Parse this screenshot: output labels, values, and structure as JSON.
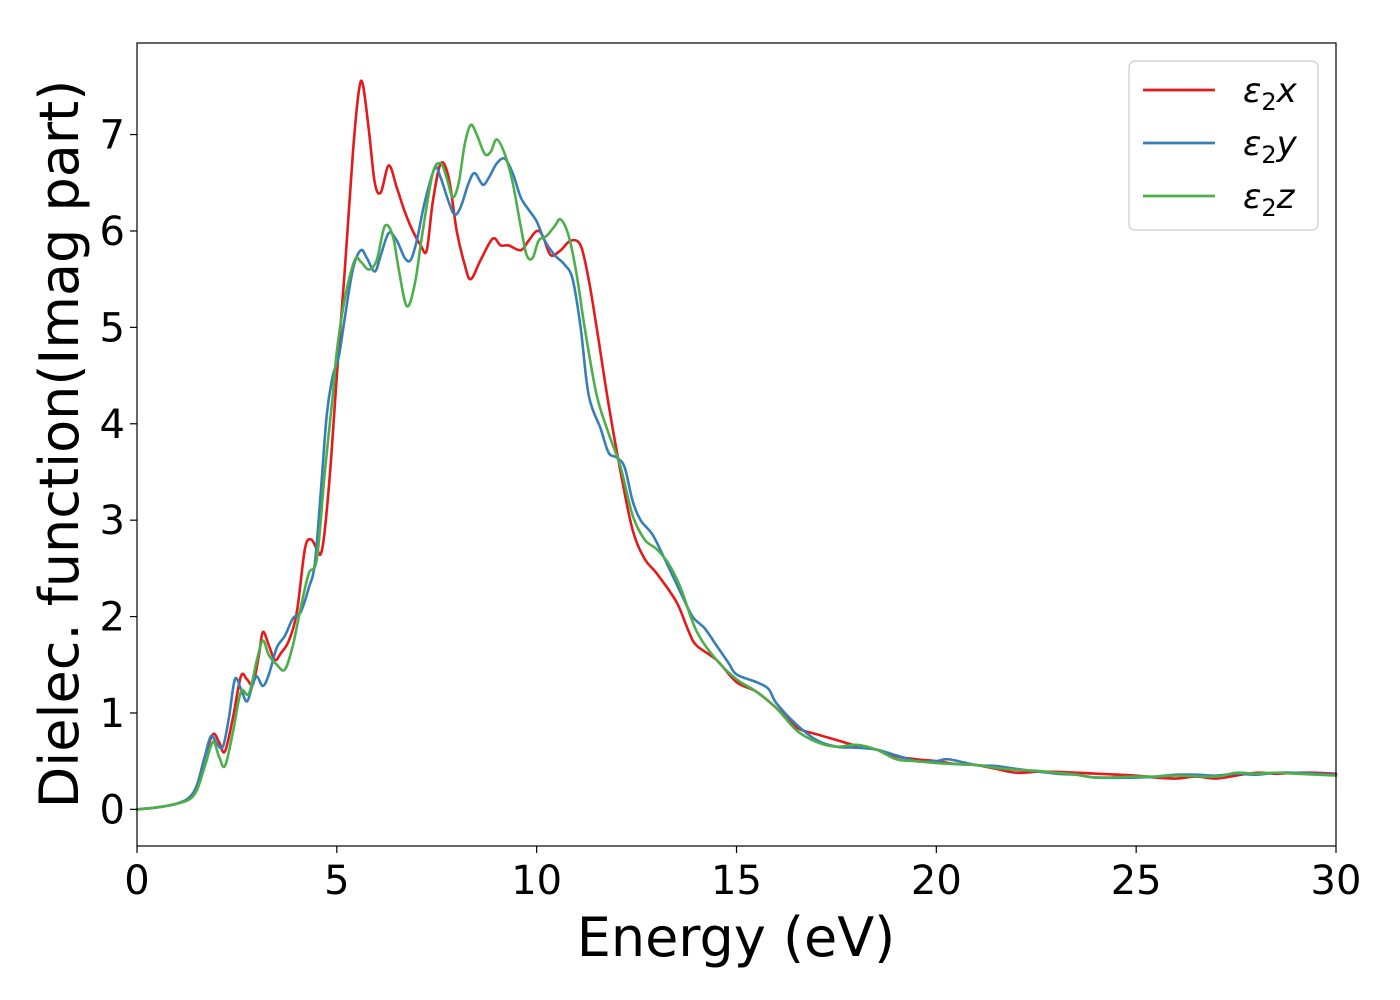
{
  "chart_data": {
    "type": "line",
    "title": "",
    "xlabel": "Energy (eV)",
    "ylabel": "Dielec. function(Imag part)",
    "xlim": [
      0,
      30
    ],
    "ylim": [
      -0.38,
      7.95
    ],
    "xticks": [
      0,
      5,
      10,
      15,
      20,
      25,
      30
    ],
    "xtick_labels": [
      "0",
      "5",
      "10",
      "15",
      "20",
      "25",
      "30"
    ],
    "yticks": [
      0,
      1,
      2,
      3,
      4,
      5,
      6,
      7
    ],
    "ytick_labels": [
      "0",
      "1",
      "2",
      "3",
      "4",
      "5",
      "6",
      "7"
    ],
    "grid": false,
    "legend_position": "top-right",
    "series": [
      {
        "name_sym": "ε",
        "name_sub": "2",
        "name_var": "x",
        "color": "#e41a1c",
        "points": [
          [
            0,
            0
          ],
          [
            0.5,
            0.02
          ],
          [
            1.0,
            0.06
          ],
          [
            1.3,
            0.12
          ],
          [
            1.5,
            0.25
          ],
          [
            1.7,
            0.55
          ],
          [
            1.9,
            0.78
          ],
          [
            2.05,
            0.7
          ],
          [
            2.2,
            0.6
          ],
          [
            2.4,
            0.95
          ],
          [
            2.6,
            1.38
          ],
          [
            2.75,
            1.35
          ],
          [
            2.9,
            1.3
          ],
          [
            3.05,
            1.6
          ],
          [
            3.15,
            1.84
          ],
          [
            3.3,
            1.7
          ],
          [
            3.45,
            1.55
          ],
          [
            3.6,
            1.62
          ],
          [
            3.8,
            1.75
          ],
          [
            4.0,
            2.05
          ],
          [
            4.2,
            2.7
          ],
          [
            4.35,
            2.8
          ],
          [
            4.5,
            2.7
          ],
          [
            4.6,
            2.65
          ],
          [
            4.7,
            2.9
          ],
          [
            4.85,
            3.6
          ],
          [
            5.0,
            4.5
          ],
          [
            5.2,
            5.6
          ],
          [
            5.4,
            6.8
          ],
          [
            5.55,
            7.45
          ],
          [
            5.65,
            7.52
          ],
          [
            5.8,
            7.05
          ],
          [
            5.95,
            6.5
          ],
          [
            6.1,
            6.4
          ],
          [
            6.3,
            6.68
          ],
          [
            6.5,
            6.45
          ],
          [
            6.7,
            6.2
          ],
          [
            6.9,
            6.0
          ],
          [
            7.1,
            5.85
          ],
          [
            7.25,
            5.8
          ],
          [
            7.4,
            6.3
          ],
          [
            7.6,
            6.7
          ],
          [
            7.8,
            6.55
          ],
          [
            8.0,
            6.0
          ],
          [
            8.2,
            5.65
          ],
          [
            8.35,
            5.5
          ],
          [
            8.6,
            5.7
          ],
          [
            8.9,
            5.92
          ],
          [
            9.1,
            5.85
          ],
          [
            9.3,
            5.85
          ],
          [
            9.6,
            5.8
          ],
          [
            9.8,
            5.9
          ],
          [
            10.0,
            6.0
          ],
          [
            10.15,
            5.95
          ],
          [
            10.35,
            5.75
          ],
          [
            10.6,
            5.8
          ],
          [
            10.85,
            5.9
          ],
          [
            11.1,
            5.85
          ],
          [
            11.3,
            5.5
          ],
          [
            11.5,
            5.0
          ],
          [
            11.8,
            4.2
          ],
          [
            12.1,
            3.5
          ],
          [
            12.4,
            2.9
          ],
          [
            12.7,
            2.6
          ],
          [
            13.0,
            2.45
          ],
          [
            13.5,
            2.15
          ],
          [
            13.8,
            1.85
          ],
          [
            14.0,
            1.7
          ],
          [
            14.5,
            1.55
          ],
          [
            15.0,
            1.32
          ],
          [
            15.5,
            1.22
          ],
          [
            16.0,
            1.05
          ],
          [
            16.5,
            0.85
          ],
          [
            17.0,
            0.78
          ],
          [
            17.5,
            0.72
          ],
          [
            18.0,
            0.66
          ],
          [
            18.5,
            0.62
          ],
          [
            19.0,
            0.55
          ],
          [
            19.5,
            0.52
          ],
          [
            20.0,
            0.5
          ],
          [
            20.5,
            0.47
          ],
          [
            21.0,
            0.46
          ],
          [
            21.5,
            0.42
          ],
          [
            22.0,
            0.38
          ],
          [
            22.5,
            0.39
          ],
          [
            23.0,
            0.39
          ],
          [
            24.0,
            0.37
          ],
          [
            25.0,
            0.35
          ],
          [
            25.5,
            0.33
          ],
          [
            26.0,
            0.32
          ],
          [
            26.5,
            0.34
          ],
          [
            27.0,
            0.32
          ],
          [
            27.5,
            0.35
          ],
          [
            28.0,
            0.38
          ],
          [
            28.5,
            0.37
          ],
          [
            29.0,
            0.38
          ],
          [
            29.5,
            0.38
          ],
          [
            30.0,
            0.37
          ]
        ]
      },
      {
        "name_sym": "ε",
        "name_sub": "2",
        "name_var": "y",
        "color": "#377eb8",
        "points": [
          [
            0,
            0
          ],
          [
            0.5,
            0.02
          ],
          [
            1.0,
            0.06
          ],
          [
            1.3,
            0.12
          ],
          [
            1.5,
            0.25
          ],
          [
            1.7,
            0.55
          ],
          [
            1.85,
            0.76
          ],
          [
            2.0,
            0.68
          ],
          [
            2.15,
            0.65
          ],
          [
            2.3,
            0.95
          ],
          [
            2.45,
            1.35
          ],
          [
            2.6,
            1.25
          ],
          [
            2.75,
            1.12
          ],
          [
            2.9,
            1.3
          ],
          [
            3.0,
            1.38
          ],
          [
            3.15,
            1.28
          ],
          [
            3.3,
            1.4
          ],
          [
            3.5,
            1.68
          ],
          [
            3.7,
            1.8
          ],
          [
            3.9,
            1.98
          ],
          [
            4.1,
            2.05
          ],
          [
            4.3,
            2.3
          ],
          [
            4.45,
            2.55
          ],
          [
            4.6,
            3.3
          ],
          [
            4.75,
            4.1
          ],
          [
            4.9,
            4.5
          ],
          [
            5.05,
            4.7
          ],
          [
            5.2,
            5.1
          ],
          [
            5.4,
            5.6
          ],
          [
            5.6,
            5.8
          ],
          [
            5.75,
            5.72
          ],
          [
            5.95,
            5.58
          ],
          [
            6.1,
            5.75
          ],
          [
            6.3,
            5.98
          ],
          [
            6.5,
            5.9
          ],
          [
            6.7,
            5.72
          ],
          [
            6.85,
            5.7
          ],
          [
            7.0,
            5.9
          ],
          [
            7.2,
            6.3
          ],
          [
            7.45,
            6.65
          ],
          [
            7.6,
            6.55
          ],
          [
            7.8,
            6.3
          ],
          [
            7.95,
            6.17
          ],
          [
            8.1,
            6.25
          ],
          [
            8.3,
            6.5
          ],
          [
            8.45,
            6.6
          ],
          [
            8.65,
            6.48
          ],
          [
            8.8,
            6.55
          ],
          [
            9.0,
            6.7
          ],
          [
            9.2,
            6.75
          ],
          [
            9.4,
            6.6
          ],
          [
            9.6,
            6.35
          ],
          [
            9.8,
            6.22
          ],
          [
            10.0,
            6.1
          ],
          [
            10.2,
            5.9
          ],
          [
            10.45,
            5.75
          ],
          [
            10.7,
            5.65
          ],
          [
            10.9,
            5.5
          ],
          [
            11.1,
            5.0
          ],
          [
            11.3,
            4.3
          ],
          [
            11.6,
            3.95
          ],
          [
            11.8,
            3.7
          ],
          [
            12.0,
            3.65
          ],
          [
            12.2,
            3.55
          ],
          [
            12.4,
            3.2
          ],
          [
            12.6,
            3.0
          ],
          [
            12.9,
            2.85
          ],
          [
            13.2,
            2.6
          ],
          [
            13.6,
            2.25
          ],
          [
            13.9,
            2.0
          ],
          [
            14.2,
            1.88
          ],
          [
            14.5,
            1.7
          ],
          [
            14.8,
            1.52
          ],
          [
            15.0,
            1.4
          ],
          [
            15.5,
            1.32
          ],
          [
            15.8,
            1.25
          ],
          [
            16.0,
            1.1
          ],
          [
            16.5,
            0.88
          ],
          [
            17.0,
            0.72
          ],
          [
            17.5,
            0.65
          ],
          [
            18.0,
            0.64
          ],
          [
            18.5,
            0.62
          ],
          [
            19.0,
            0.56
          ],
          [
            19.5,
            0.5
          ],
          [
            20.0,
            0.5
          ],
          [
            20.3,
            0.52
          ],
          [
            21.0,
            0.46
          ],
          [
            21.5,
            0.45
          ],
          [
            22.0,
            0.42
          ],
          [
            23.0,
            0.37
          ],
          [
            23.5,
            0.36
          ],
          [
            24.0,
            0.33
          ],
          [
            25.0,
            0.33
          ],
          [
            25.5,
            0.34
          ],
          [
            26.0,
            0.36
          ],
          [
            26.5,
            0.36
          ],
          [
            27.0,
            0.35
          ],
          [
            27.5,
            0.37
          ],
          [
            28.0,
            0.36
          ],
          [
            28.5,
            0.38
          ],
          [
            29.0,
            0.38
          ],
          [
            30.0,
            0.36
          ]
        ]
      },
      {
        "name_sym": "ε",
        "name_sub": "2",
        "name_var": "z",
        "color": "#4daf4a",
        "points": [
          [
            0,
            0
          ],
          [
            0.5,
            0.02
          ],
          [
            1.0,
            0.06
          ],
          [
            1.3,
            0.1
          ],
          [
            1.5,
            0.2
          ],
          [
            1.7,
            0.45
          ],
          [
            1.9,
            0.7
          ],
          [
            2.05,
            0.55
          ],
          [
            2.2,
            0.45
          ],
          [
            2.4,
            0.8
          ],
          [
            2.6,
            1.22
          ],
          [
            2.8,
            1.2
          ],
          [
            3.0,
            1.55
          ],
          [
            3.15,
            1.75
          ],
          [
            3.3,
            1.6
          ],
          [
            3.5,
            1.5
          ],
          [
            3.7,
            1.45
          ],
          [
            3.9,
            1.7
          ],
          [
            4.1,
            2.1
          ],
          [
            4.3,
            2.45
          ],
          [
            4.5,
            2.6
          ],
          [
            4.7,
            3.5
          ],
          [
            4.9,
            4.3
          ],
          [
            5.0,
            4.75
          ],
          [
            5.2,
            5.3
          ],
          [
            5.45,
            5.7
          ],
          [
            5.6,
            5.68
          ],
          [
            5.8,
            5.6
          ],
          [
            6.0,
            5.7
          ],
          [
            6.2,
            6.05
          ],
          [
            6.4,
            5.95
          ],
          [
            6.55,
            5.6
          ],
          [
            6.75,
            5.22
          ],
          [
            6.95,
            5.45
          ],
          [
            7.15,
            6.0
          ],
          [
            7.4,
            6.6
          ],
          [
            7.6,
            6.7
          ],
          [
            7.75,
            6.55
          ],
          [
            7.9,
            6.35
          ],
          [
            8.05,
            6.5
          ],
          [
            8.2,
            6.9
          ],
          [
            8.35,
            7.1
          ],
          [
            8.5,
            7.0
          ],
          [
            8.7,
            6.8
          ],
          [
            8.85,
            6.82
          ],
          [
            9.0,
            6.95
          ],
          [
            9.2,
            6.8
          ],
          [
            9.4,
            6.5
          ],
          [
            9.6,
            6.05
          ],
          [
            9.75,
            5.75
          ],
          [
            9.9,
            5.72
          ],
          [
            10.05,
            5.9
          ],
          [
            10.25,
            5.95
          ],
          [
            10.45,
            6.05
          ],
          [
            10.6,
            6.12
          ],
          [
            10.8,
            5.95
          ],
          [
            11.0,
            5.55
          ],
          [
            11.2,
            5.0
          ],
          [
            11.5,
            4.3
          ],
          [
            11.8,
            3.9
          ],
          [
            12.1,
            3.55
          ],
          [
            12.4,
            3.05
          ],
          [
            12.7,
            2.8
          ],
          [
            13.0,
            2.7
          ],
          [
            13.3,
            2.55
          ],
          [
            13.6,
            2.3
          ],
          [
            14.0,
            1.85
          ],
          [
            14.5,
            1.55
          ],
          [
            15.0,
            1.35
          ],
          [
            15.5,
            1.22
          ],
          [
            16.0,
            1.05
          ],
          [
            16.5,
            0.82
          ],
          [
            17.0,
            0.7
          ],
          [
            17.5,
            0.65
          ],
          [
            18.0,
            0.67
          ],
          [
            18.5,
            0.62
          ],
          [
            19.0,
            0.52
          ],
          [
            19.5,
            0.5
          ],
          [
            20.0,
            0.48
          ],
          [
            20.5,
            0.47
          ],
          [
            21.0,
            0.46
          ],
          [
            21.5,
            0.43
          ],
          [
            22.0,
            0.41
          ],
          [
            22.5,
            0.4
          ],
          [
            23.0,
            0.38
          ],
          [
            23.5,
            0.36
          ],
          [
            24.0,
            0.33
          ],
          [
            25.0,
            0.34
          ],
          [
            25.5,
            0.34
          ],
          [
            26.0,
            0.35
          ],
          [
            27.0,
            0.34
          ],
          [
            27.5,
            0.38
          ],
          [
            28.0,
            0.37
          ],
          [
            28.5,
            0.38
          ],
          [
            29.0,
            0.37
          ],
          [
            30.0,
            0.35
          ]
        ]
      }
    ]
  }
}
